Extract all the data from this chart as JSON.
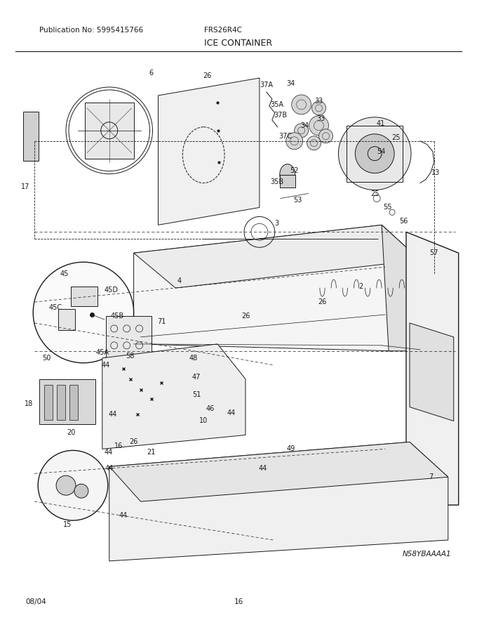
{
  "title": "ICE CONTAINER",
  "pub_no": "Publication No: 5995415766",
  "model": "FRS26R4C",
  "date": "08/04",
  "page": "16",
  "diagram_id": "N58YBAAAA1",
  "bg_color": "#ffffff",
  "line_color": "#1a1a1a",
  "fig_width": 6.8,
  "fig_height": 8.8,
  "dpi": 100,
  "title_fontsize": 9,
  "header_fontsize": 7.5,
  "footer_fontsize": 7.5,
  "label_fontsize": 7.0
}
